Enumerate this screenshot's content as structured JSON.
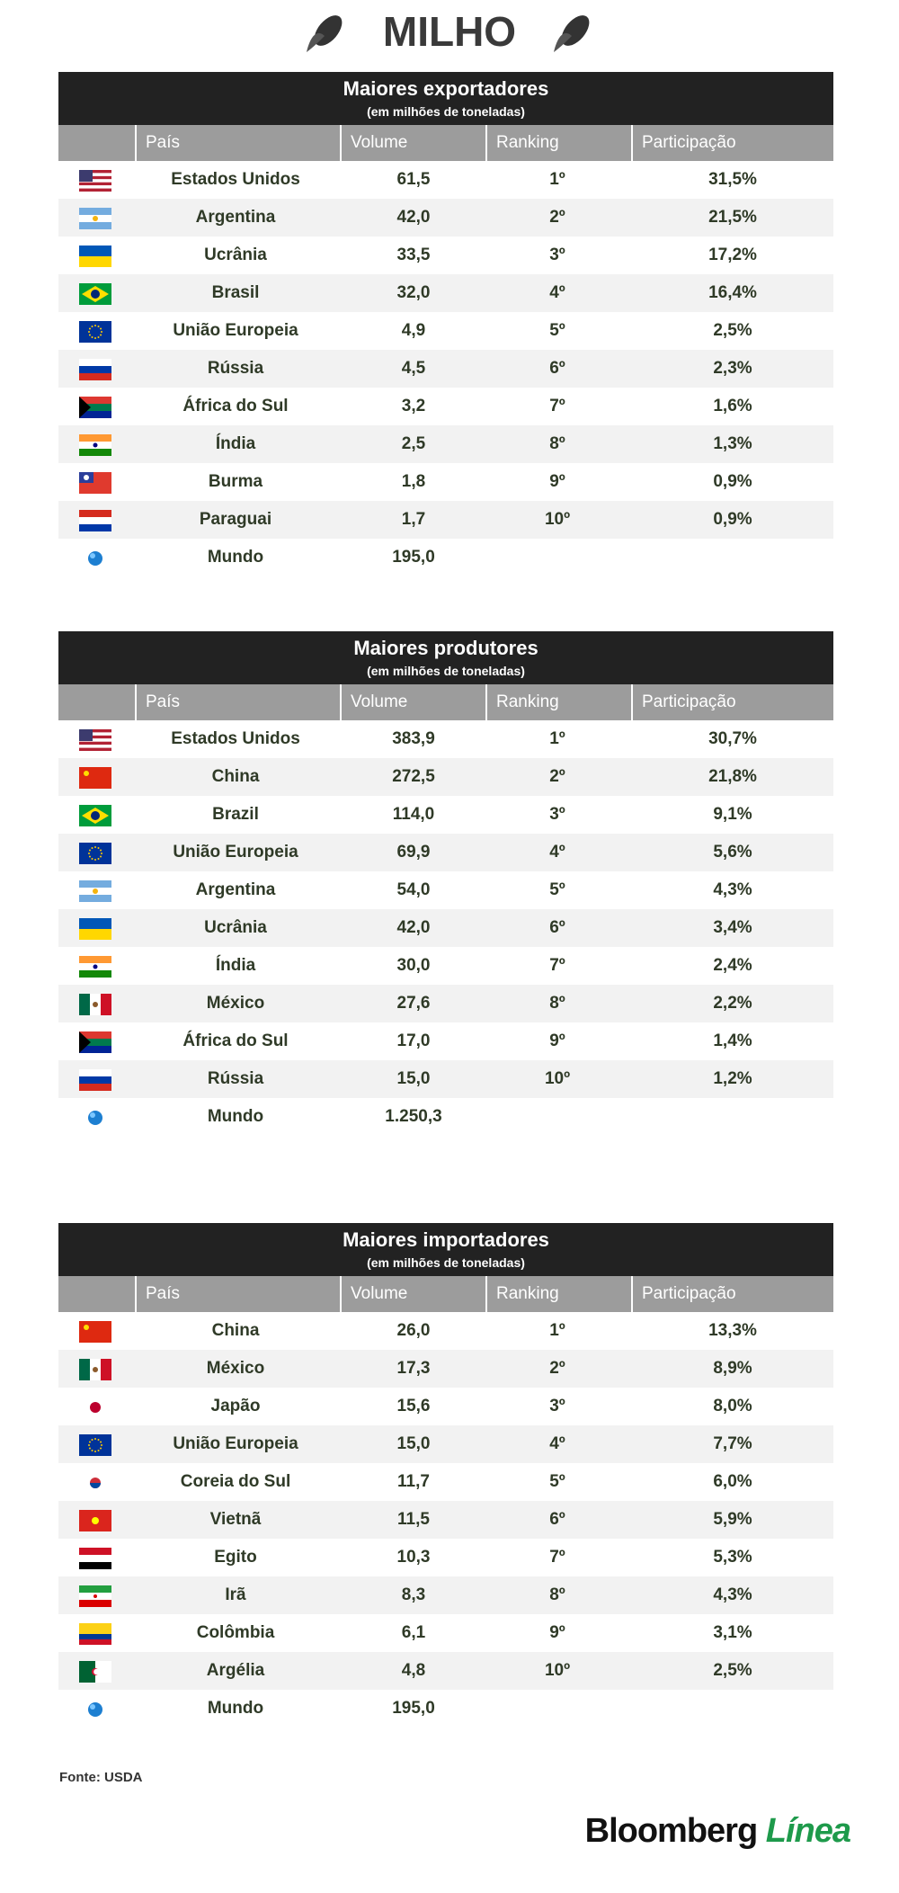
{
  "header": {
    "title": "MILHO"
  },
  "tables": [
    {
      "title": "Maiores exportadores",
      "subtitle": "(em milhões de toneladas)",
      "columns": [
        "País",
        "Volume",
        "Ranking",
        "Participação"
      ],
      "rows": [
        [
          "Estados Unidos",
          "61,5",
          "1º",
          "31,5%"
        ],
        [
          "Argentina",
          "42,0",
          "2º",
          "21,5%"
        ],
        [
          "Ucrânia",
          "33,5",
          "3º",
          "17,2%"
        ],
        [
          "Brasil",
          "32,0",
          "4º",
          "16,4%"
        ],
        [
          "União Europeia",
          "4,9",
          "5º",
          "2,5%"
        ],
        [
          "Rússia",
          "4,5",
          "6º",
          "2,3%"
        ],
        [
          "África do Sul",
          "3,2",
          "7º",
          "1,6%"
        ],
        [
          "Índia",
          "2,5",
          "8º",
          "1,3%"
        ],
        [
          "Burma",
          "1,8",
          "9º",
          "0,9%"
        ],
        [
          "Paraguai",
          "1,7",
          "10º",
          "0,9%"
        ],
        [
          "Mundo",
          "195,0"
        ]
      ]
    },
    {
      "title": "Maiores produtores",
      "subtitle": "(em milhões de toneladas)",
      "columns": [
        "País",
        "Volume",
        "Ranking",
        "Participação"
      ],
      "rows": [
        [
          "Estados Unidos",
          "383,9",
          "1º",
          "30,7%"
        ],
        [
          "China",
          "272,5",
          "2º",
          "21,8%"
        ],
        [
          "Brazil",
          "114,0",
          "3º",
          "9,1%"
        ],
        [
          "União Europeia",
          "69,9",
          "4º",
          "5,6%"
        ],
        [
          "Argentina",
          "54,0",
          "5º",
          "4,3%"
        ],
        [
          "Ucrânia",
          "42,0",
          "6º",
          "3,4%"
        ],
        [
          "Índia",
          "30,0",
          "7º",
          "2,4%"
        ],
        [
          "México",
          "27,6",
          "8º",
          "2,2%"
        ],
        [
          "África do Sul",
          "17,0",
          "9º",
          "1,4%"
        ],
        [
          "Rússia",
          "15,0",
          "10º",
          "1,2%"
        ],
        [
          "Mundo",
          "1.250,3"
        ]
      ]
    },
    {
      "title": "Maiores importadores",
      "subtitle": "(em milhões de toneladas)",
      "columns": [
        "País",
        "Volume",
        "Ranking",
        "Participação"
      ],
      "rows": [
        [
          "China",
          "26,0",
          "1º",
          "13,3%"
        ],
        [
          "México",
          "17,3",
          "2º",
          "8,9%"
        ],
        [
          "Japão",
          "15,6",
          "3º",
          "8,0%"
        ],
        [
          "União Europeia",
          "15,0",
          "4º",
          "7,7%"
        ],
        [
          "Coreia do Sul",
          "11,7",
          "5º",
          "6,0%"
        ],
        [
          "Vietnã",
          "11,5",
          "6º",
          "5,9%"
        ],
        [
          "Egito",
          "10,3",
          "7º",
          "5,3%"
        ],
        [
          "Irã",
          "8,3",
          "8º",
          "4,3%"
        ],
        [
          "Colômbia",
          "6,1",
          "9º",
          "3,1%"
        ],
        [
          "Argélia",
          "4,8",
          "10º",
          "2,5%"
        ],
        [
          "Mundo",
          "195,0"
        ]
      ]
    }
  ],
  "source": "Fonte: USDA",
  "logo": {
    "brand": "Bloomberg",
    "sub": "Línea"
  }
}
